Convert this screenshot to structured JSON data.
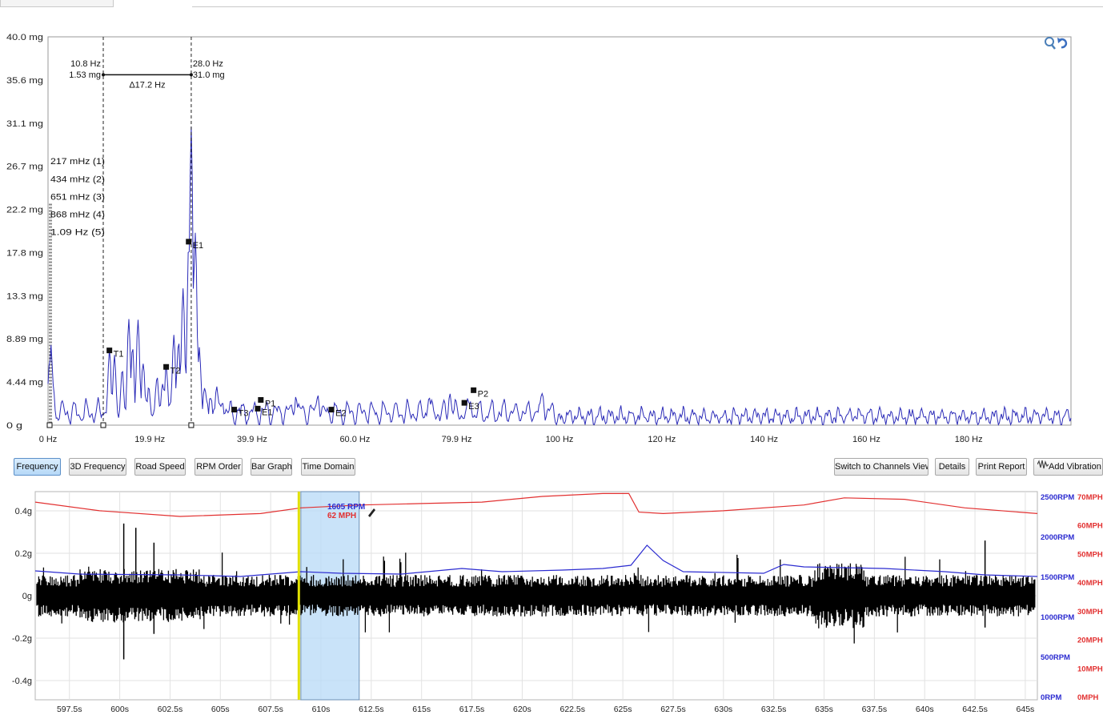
{
  "spectrum": {
    "y_ticks": [
      "40.0 mg",
      "35.6 mg",
      "31.1 mg",
      "26.7 mg",
      "22.2 mg",
      "17.8 mg",
      "13.3 mg",
      "8.89 mg",
      "4.44 mg",
      "0 g"
    ],
    "x_ticks": [
      "0 Hz",
      "19.9 Hz",
      "39.9 Hz",
      "60.0 Hz",
      "79.9 Hz",
      "100 Hz",
      "120 Hz",
      "140 Hz",
      "160 Hz",
      "180 Hz"
    ],
    "cursor_left": {
      "freq": "10.8 Hz",
      "amp": "1.53 mg"
    },
    "cursor_right": {
      "freq": "28.0 Hz",
      "amp": "31.0 mg"
    },
    "delta": "Δ17.2 Hz",
    "harmonics": [
      "217 mHz (1)",
      "434 mHz (2)",
      "651 mHz (3)",
      "868 mHz (4)",
      "1.09 Hz (5)"
    ],
    "markers": [
      {
        "label": "T1",
        "freq": 12.0,
        "amp": 7.7
      },
      {
        "label": "T2",
        "freq": 23.1,
        "amp": 6.0
      },
      {
        "label": "E1",
        "freq": 27.5,
        "amp": 18.9
      },
      {
        "label": "T3",
        "freq": 36.4,
        "amp": 1.6
      },
      {
        "label": "P1",
        "freq": 41.6,
        "amp": 2.6
      },
      {
        "label": "E1",
        "freq": 41.0,
        "amp": 1.7
      },
      {
        "label": "E2",
        "freq": 55.4,
        "amp": 1.6
      },
      {
        "label": "E3",
        "freq": 81.4,
        "amp": 2.3
      },
      {
        "label": "P2",
        "freq": 83.2,
        "amp": 3.6
      }
    ],
    "trace_color": "#2b2bb8",
    "ylim": [
      0,
      40.0
    ],
    "xlim": [
      0,
      200
    ],
    "zoom_icon": "zoom-undo-icon"
  },
  "toolbar": {
    "left_buttons": [
      "Frequency",
      "3D Frequency",
      "Road Speed",
      "RPM Order",
      "Bar Graph",
      "Time Domain"
    ],
    "active": "Frequency",
    "right_buttons": [
      "Switch to Channels View",
      "Details",
      "Print Report",
      "Add Vibration"
    ],
    "add_vibration_icon": "vibration-wave-icon"
  },
  "time": {
    "y_ticks": [
      "0.4g",
      "0.2g",
      "0g",
      "-0.2g",
      "-0.4g"
    ],
    "rpm_ticks": [
      "2500RPM",
      "2000RPM",
      "1500RPM",
      "1000RPM",
      "500RPM",
      "0RPM"
    ],
    "mph_ticks": [
      "70MPH",
      "60MPH",
      "50MPH",
      "40MPH",
      "30MPH",
      "20MPH",
      "10MPH",
      "0MPH"
    ],
    "x_ticks": [
      "597.5s",
      "600s",
      "602.5s",
      "605s",
      "607.5s",
      "610s",
      "612.5s",
      "615s",
      "617.5s",
      "620s",
      "622.5s",
      "625s",
      "627.5s",
      "630s",
      "632.5s",
      "635s",
      "637.5s",
      "640s",
      "642.5s",
      "645s"
    ],
    "readout_rpm": "1605 RPM",
    "readout_mph": "62 MPH",
    "rpm_color": "#2b2bd0",
    "mph_color": "#e23030",
    "cursor_color": "#e0e000",
    "selection_color": "#bcdcf7"
  }
}
